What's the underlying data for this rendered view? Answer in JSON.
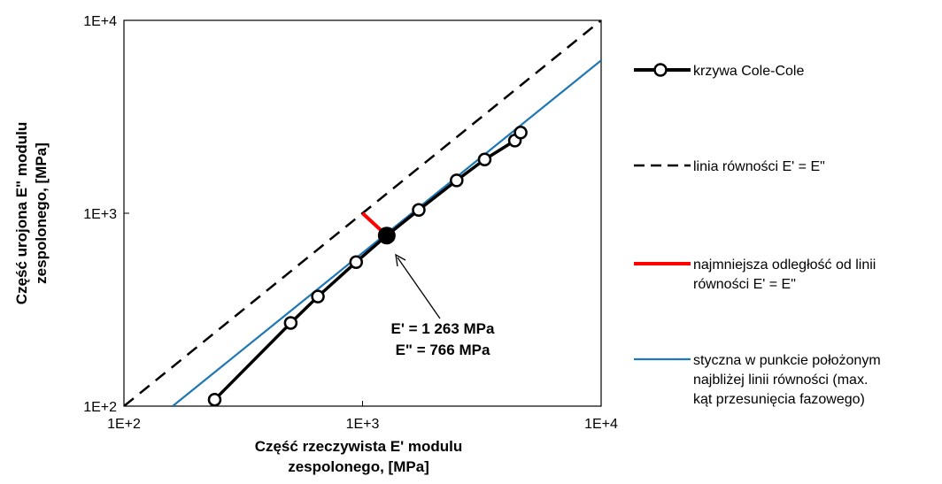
{
  "chart_data": {
    "type": "scatter",
    "x_scale": "log",
    "y_scale": "log",
    "xlim": [
      100,
      10000
    ],
    "ylim": [
      100,
      10000
    ],
    "x_ticks": [
      100,
      1000,
      10000
    ],
    "y_ticks": [
      100,
      1000,
      10000
    ],
    "x_tick_labels": [
      "1E+2",
      "1E+3",
      "1E+4"
    ],
    "y_tick_labels": [
      "1E+2",
      "1E+3",
      "1E+4"
    ],
    "xlabel_lines": [
      "Część rzeczywista E' modulu",
      "zespolonego, [MPa]"
    ],
    "ylabel_lines": [
      "Część urojona E\" modulu",
      "zespolonego, [MPa]"
    ],
    "grid": false,
    "legend_position": "right",
    "series": [
      {
        "name": "krzywa Cole-Cole",
        "color": "#000000",
        "style": "line-with-open-circle-markers",
        "x": [
          240,
          500,
          650,
          940,
          1263,
          1720,
          2480,
          3250,
          4350,
          4600
        ],
        "y": [
          108,
          270,
          370,
          558,
          766,
          1040,
          1480,
          1900,
          2380,
          2620
        ]
      },
      {
        "name": "linia równości E' = E\"",
        "color": "#000000",
        "style": "dashed",
        "x": [
          100,
          10000
        ],
        "y": [
          100,
          10000
        ]
      },
      {
        "name_lines": [
          "najmniejsza odległość od linii",
          "równości E' = E\""
        ],
        "color": "#ff0000",
        "style": "thick-line",
        "x": [
          1000,
          1263
        ],
        "y": [
          1000,
          766
        ]
      },
      {
        "name_lines": [
          "styczna w punkcie położonym",
          "najbliżej linii równości (max.",
          "kąt przesunięcia fazowego)"
        ],
        "color": "#1f77b4",
        "style": "line",
        "x": [
          160,
          10000
        ],
        "y": [
          100,
          6200
        ]
      }
    ],
    "highlight_point": {
      "x": 1263,
      "y": 766,
      "color": "#000000"
    },
    "annotation": {
      "lines": [
        "E' = 1 263 MPa",
        "E\" = 766 MPa"
      ],
      "arrow_target": {
        "x": 1263,
        "y": 766
      }
    }
  }
}
